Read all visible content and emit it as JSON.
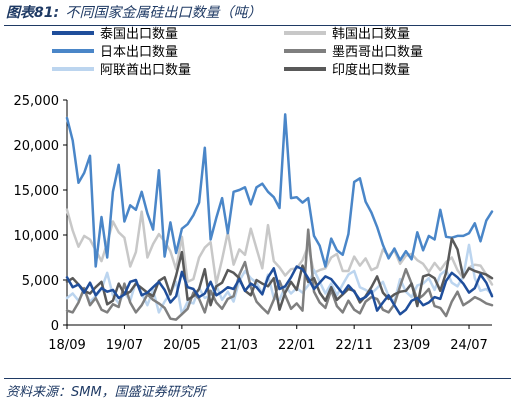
{
  "header": {
    "figure_label": "图表81:",
    "title": "不同国家金属硅出口数量（吨）"
  },
  "footer": {
    "source": "资料来源：SMM，国盛证券研究所"
  },
  "chart_data": {
    "type": "line",
    "title": "不同国家金属硅出口数量（吨）",
    "xlabel": "",
    "ylabel": "",
    "ylim": [
      0,
      25000
    ],
    "yticks": [
      "0",
      "5,000",
      "10,000",
      "15,000",
      "20,000",
      "25,000"
    ],
    "xticks": [
      "18/09",
      "19/07",
      "20/05",
      "21/03",
      "22/01",
      "22/11",
      "23/09",
      "24/07"
    ],
    "grid": false,
    "legend_position": "top",
    "x": [
      "18/09",
      "18/10",
      "18/11",
      "18/12",
      "19/01",
      "19/02",
      "19/03",
      "19/04",
      "19/05",
      "19/06",
      "19/07",
      "19/08",
      "19/09",
      "19/10",
      "19/11",
      "19/12",
      "20/01",
      "20/02",
      "20/03",
      "20/04",
      "20/05",
      "20/06",
      "20/07",
      "20/08",
      "20/09",
      "20/10",
      "20/11",
      "20/12",
      "21/01",
      "21/02",
      "21/03",
      "21/04",
      "21/05",
      "21/06",
      "21/07",
      "21/08",
      "21/09",
      "21/10",
      "21/11",
      "21/12",
      "22/01",
      "22/02",
      "22/03",
      "22/04",
      "22/05",
      "22/06",
      "22/07",
      "22/08",
      "22/09",
      "22/10",
      "22/11",
      "22/12",
      "23/01",
      "23/02",
      "23/03",
      "23/04",
      "23/05",
      "23/06",
      "23/07",
      "23/08",
      "23/09",
      "23/10",
      "23/11",
      "23/12",
      "24/01",
      "24/02",
      "24/03",
      "24/04",
      "24/05",
      "24/06",
      "24/07",
      "24/08",
      "24/09",
      "24/10",
      "24/11"
    ],
    "series": [
      {
        "name": "泰国出口数量",
        "color": "#1f4e9b",
        "width": 2.5,
        "values": [
          5300,
          4200,
          4500,
          3600,
          4700,
          3300,
          4100,
          3700,
          3900,
          3000,
          3400,
          4800,
          5000,
          3300,
          3600,
          4200,
          4800,
          3900,
          2500,
          3200,
          5900,
          4200,
          4000,
          3100,
          3500,
          4800,
          3300,
          3700,
          4200,
          4000,
          5100,
          3800,
          4600,
          4200,
          3400,
          5300,
          6300,
          4000,
          4300,
          5300,
          6500,
          6200,
          5200,
          4000,
          4700,
          5400,
          5100,
          4300,
          3500,
          4400,
          3700,
          2800,
          3100,
          3800,
          1600,
          2500,
          3300,
          2200,
          1200,
          1700,
          2700,
          3000,
          2200,
          2500,
          3100,
          2900,
          4900,
          5800,
          5300,
          4600,
          3600,
          4100,
          5600,
          4700,
          3200
        ]
      },
      {
        "name": "日本出口数量",
        "color": "#4a86c8",
        "width": 2.5,
        "values": [
          23000,
          20500,
          15800,
          16900,
          18800,
          6500,
          12000,
          7500,
          14800,
          17800,
          11500,
          13300,
          12800,
          14800,
          12400,
          10600,
          17200,
          7600,
          11400,
          8000,
          10700,
          11200,
          12200,
          13600,
          19700,
          9500,
          11900,
          14100,
          10200,
          14800,
          15000,
          15300,
          13400,
          15300,
          15700,
          14800,
          14200,
          13000,
          23400,
          14100,
          14200,
          13600,
          14100,
          9900,
          8800,
          6500,
          9600,
          8300,
          7800,
          10100,
          15900,
          16300,
          13700,
          12500,
          10900,
          8900,
          7400,
          8500,
          7200,
          8200,
          7300,
          10300,
          8300,
          9900,
          9500,
          12800,
          9800,
          9700,
          9900,
          9900,
          10200,
          11300,
          9300,
          11600,
          12600
        ]
      },
      {
        "name": "阿联酋出口数量",
        "color": "#bcd5ef",
        "width": 2.5,
        "values": [
          3000,
          3500,
          2700,
          3800,
          2600,
          3200,
          4000,
          5800,
          3300,
          2400,
          3600,
          2700,
          4800,
          3500,
          2200,
          3900,
          1400,
          2600,
          3500,
          4800,
          1200,
          2600,
          2400,
          4100,
          3000,
          3300,
          4400,
          2800,
          3700,
          2600,
          4900,
          6000,
          5200,
          4700,
          3500,
          5600,
          3000,
          2800,
          4300,
          3500,
          4100,
          3600,
          4400,
          6100,
          4800,
          3500,
          4600,
          3300,
          4500,
          5600,
          6000,
          4200,
          3900,
          3500,
          4100,
          4800,
          3200,
          2600,
          5100,
          3700,
          3100,
          4400,
          4600,
          5200,
          3900,
          5600,
          6100,
          4700,
          4300,
          5400,
          8900,
          5200,
          3800,
          4000,
          3400
        ]
      },
      {
        "name": "韩国出口数量",
        "color": "#c8c8c8",
        "width": 2.5,
        "values": [
          12800,
          10500,
          8700,
          9900,
          9500,
          8300,
          7100,
          9100,
          11500,
          10300,
          9700,
          6500,
          8100,
          12600,
          7500,
          9000,
          10100,
          9300,
          8200,
          6200,
          9800,
          4800,
          5100,
          7500,
          8600,
          9200,
          4600,
          7300,
          10300,
          6700,
          8400,
          7800,
          10700,
          8500,
          6300,
          11100,
          7100,
          6400,
          5500,
          6200,
          6300,
          7200,
          8800,
          5800,
          6100,
          6300,
          7500,
          7900,
          6000,
          6000,
          7600,
          6600,
          7400,
          6100,
          6400,
          8400,
          7700,
          8300,
          6800,
          7700,
          7900,
          7200,
          6800,
          5900,
          6900,
          6100,
          7000,
          7500,
          6100,
          5200,
          6400,
          6700,
          6600,
          5600,
          4500
        ]
      },
      {
        "name": "墨西哥出口数量",
        "color": "#7f7f7f",
        "width": 2.5,
        "values": [
          1600,
          1400,
          2500,
          4100,
          2200,
          3000,
          1700,
          1400,
          2300,
          2000,
          4600,
          2500,
          1400,
          2200,
          3400,
          2800,
          2400,
          1900,
          700,
          600,
          1200,
          1800,
          3600,
          2900,
          1400,
          3800,
          2500,
          1800,
          2900,
          3200,
          5600,
          7000,
          4200,
          2600,
          1900,
          1300,
          2800,
          4900,
          3300,
          1800,
          2400,
          1600,
          10600,
          3700,
          2500,
          1900,
          3900,
          2100,
          1400,
          2700,
          1700,
          1300,
          2600,
          3100,
          2900,
          1700,
          1400,
          2300,
          4300,
          6200,
          4600,
          2800,
          3300,
          4000,
          2100,
          1900,
          1000,
          2600,
          3700,
          2200,
          2600,
          3100,
          2800,
          2400,
          2200
        ]
      },
      {
        "name": "印度出口数量",
        "color": "#595959",
        "width": 2.5,
        "values": [
          4800,
          5200,
          4500,
          3800,
          3500,
          4200,
          4800,
          2300,
          2700,
          4600,
          3400,
          3700,
          4600,
          4100,
          3600,
          3200,
          4900,
          5300,
          3400,
          5500,
          8100,
          2800,
          3200,
          4000,
          6200,
          2200,
          4300,
          4700,
          6100,
          5800,
          5200,
          3800,
          3300,
          5000,
          4600,
          4300,
          5200,
          1700,
          3600,
          4800,
          3900,
          6600,
          4800,
          5200,
          3600,
          2700,
          4200,
          2800,
          3400,
          4000,
          3800,
          2500,
          3200,
          4200,
          5400,
          3600,
          2900,
          3400,
          3700,
          3800,
          4600,
          2100,
          5400,
          5600,
          5200,
          3800,
          5800,
          9600,
          8400,
          5300,
          6300,
          6000,
          5800,
          5600,
          5200
        ]
      }
    ],
    "legend_order": [
      "泰国出口数量",
      "韩国出口数量",
      "日本出口数量",
      "墨西哥出口数量",
      "阿联酋出口数量",
      "印度出口数量"
    ]
  }
}
